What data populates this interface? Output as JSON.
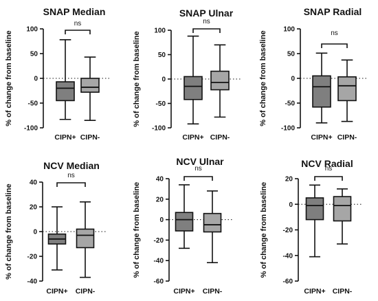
{
  "colors": {
    "group1": "#7f7f7f",
    "group2": "#a6a6a6",
    "line": "#111111"
  },
  "chart_data": [
    {
      "type": "box",
      "title": "SNAP Median",
      "ylabel": "% of change from baseline",
      "ylim": [
        -100,
        100
      ],
      "yticks": [
        "100",
        "50",
        "0",
        "-50",
        "-100"
      ],
      "reference_line_y": 0,
      "categories": [
        "CIPN+",
        "CIPN-"
      ],
      "significance": "ns",
      "series": [
        {
          "category": "CIPN+",
          "min": -83,
          "q1": -45,
          "median": -20,
          "q3": -7,
          "max": 78
        },
        {
          "category": "CIPN-",
          "min": -85,
          "q1": -28,
          "median": -18,
          "q3": 0,
          "max": 43
        }
      ]
    },
    {
      "type": "box",
      "title": "SNAP Ulnar",
      "ylabel": "% of change from baseline",
      "ylim": [
        -100,
        100
      ],
      "yticks": [
        "100",
        "50",
        "0",
        "-50",
        "-100"
      ],
      "reference_line_y": 0,
      "categories": [
        "CIPN+",
        "CIPN-"
      ],
      "significance": "ns",
      "series": [
        {
          "category": "CIPN+",
          "min": -92,
          "q1": -42,
          "median": -15,
          "q3": 5,
          "max": 88
        },
        {
          "category": "CIPN-",
          "min": -78,
          "q1": -22,
          "median": -7,
          "q3": 16,
          "max": 70
        }
      ]
    },
    {
      "type": "box",
      "title": "SNAP Radial",
      "ylabel": "% of change from baseline",
      "ylim": [
        -100,
        100
      ],
      "yticks": [
        "100",
        "50",
        "0",
        "-50",
        "-100"
      ],
      "reference_line_y": 0,
      "categories": [
        "CIPN+",
        "CIPN-"
      ],
      "significance": "ns",
      "series": [
        {
          "category": "CIPN+",
          "min": -90,
          "q1": -58,
          "median": -17,
          "q3": 5,
          "max": 51
        },
        {
          "category": "CIPN-",
          "min": -87,
          "q1": -45,
          "median": -15,
          "q3": 3,
          "max": 37
        }
      ]
    },
    {
      "type": "box",
      "title": "NCV Median",
      "ylabel": "% of change from baseline",
      "ylim": [
        -40,
        40
      ],
      "yticks": [
        "40",
        "20",
        "0",
        "-20",
        "-40"
      ],
      "reference_line_y": 0,
      "categories": [
        "CIPN+",
        "CIPN-"
      ],
      "significance": "ns",
      "series": [
        {
          "category": "CIPN+",
          "min": -31,
          "q1": -10,
          "median": -6,
          "q3": -2,
          "max": 20
        },
        {
          "category": "CIPN-",
          "min": -37,
          "q1": -13,
          "median": -3,
          "q3": 2,
          "max": 24
        }
      ]
    },
    {
      "type": "box",
      "title": "NCV Ulnar",
      "ylabel": "% of change from baseline",
      "ylim": [
        -60,
        40
      ],
      "yticks": [
        "40",
        "20",
        "0",
        "-20",
        "-40",
        "-60"
      ],
      "reference_line_y": 0,
      "categories": [
        "CIPN+",
        "CIPN-"
      ],
      "significance": "ns",
      "series": [
        {
          "category": "CIPN+",
          "min": -28,
          "q1": -11,
          "median": 0,
          "q3": 7,
          "max": 34
        },
        {
          "category": "CIPN-",
          "min": -42,
          "q1": -12,
          "median": -5,
          "q3": 6,
          "max": 28
        }
      ]
    },
    {
      "type": "box",
      "title": "NCV  Radial",
      "ylabel": "% of change from baseline",
      "ylim": [
        -60,
        20
      ],
      "yticks": [
        "20",
        "0",
        "-20",
        "-40",
        "-60"
      ],
      "reference_line_y": 0,
      "categories": [
        "CIPN+",
        "CIPN-"
      ],
      "significance": "ns",
      "series": [
        {
          "category": "CIPN+",
          "min": -41,
          "q1": -12,
          "median": -1,
          "q3": 5,
          "max": 15
        },
        {
          "category": "CIPN-",
          "min": -31,
          "q1": -13,
          "median": -1,
          "q3": 6,
          "max": 12
        }
      ]
    }
  ]
}
